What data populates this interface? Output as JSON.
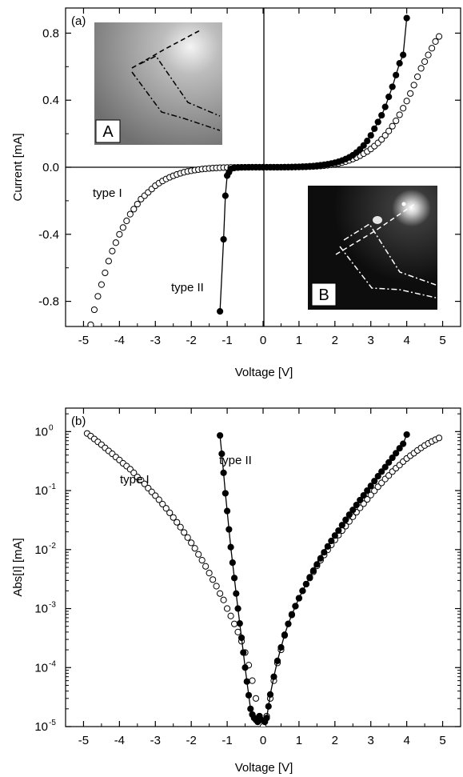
{
  "chart_data": [
    {
      "type": "scatter",
      "panel_label": "(a)",
      "xlabel": "Voltage [V]",
      "ylabel": "Current [mA]",
      "xlim": [
        -5.5,
        5.5
      ],
      "ylim": [
        -0.95,
        0.95
      ],
      "xticks": [
        -5,
        -4,
        -3,
        -2,
        -1,
        0,
        1,
        2,
        3,
        4,
        5
      ],
      "yticks": [
        -0.8,
        -0.4,
        0.0,
        0.4,
        0.8
      ],
      "xtick_labels": [
        "-5",
        "-4",
        "-3",
        "-2",
        "-1",
        "0",
        "1",
        "2",
        "3",
        "4",
        "5"
      ],
      "ytick_labels": [
        "-0.8",
        "-0.4",
        "0.0",
        "0.4",
        "0.8"
      ],
      "annotations": [
        {
          "text": "type I",
          "x": -4.4,
          "y": -0.16
        },
        {
          "text": "type II",
          "x": -2.7,
          "y": -0.73
        }
      ],
      "insets": [
        {
          "label": "A",
          "style": "grey micrograph, bright glow at upper left"
        },
        {
          "label": "B",
          "style": "dark micrograph, bright spot at upper right"
        }
      ],
      "series": [
        {
          "marker": "open-circle",
          "x": [
            -4.8,
            -4.7,
            -4.6,
            -4.5,
            -4.4,
            -4.3,
            -4.2,
            -4.1,
            -4.0,
            -3.9,
            -3.8,
            -3.7,
            -3.6,
            -3.5,
            -3.4,
            -3.3,
            -3.2,
            -3.1,
            -3.0,
            -2.9,
            -2.8,
            -2.7,
            -2.6,
            -2.5,
            -2.4,
            -2.3,
            -2.2,
            -2.1,
            -2.0,
            -1.9,
            -1.8,
            -1.7,
            -1.6,
            -1.5,
            -1.4,
            -1.3,
            -1.2,
            -1.1,
            -1.0,
            -0.9,
            -0.8,
            -0.7,
            -0.6,
            -0.5,
            -0.4,
            -0.3,
            -0.2,
            -0.1,
            0.0,
            0.1,
            0.2,
            0.3,
            0.4,
            0.5,
            0.6,
            0.7,
            0.8,
            0.9,
            1.0,
            1.1,
            1.2,
            1.3,
            1.4,
            1.5,
            1.6,
            1.7,
            1.8,
            1.9,
            2.0,
            2.1,
            2.2,
            2.3,
            2.4,
            2.5,
            2.6,
            2.7,
            2.8,
            2.9,
            3.0,
            3.1,
            3.2,
            3.3,
            3.4,
            3.5,
            3.6,
            3.7,
            3.8,
            3.9,
            4.0,
            4.1,
            4.2,
            4.3,
            4.4,
            4.5,
            4.6,
            4.7,
            4.8,
            4.9
          ],
          "y": [
            -0.94,
            -0.85,
            -0.77,
            -0.7,
            -0.63,
            -0.56,
            -0.5,
            -0.45,
            -0.4,
            -0.36,
            -0.32,
            -0.28,
            -0.25,
            -0.22,
            -0.19,
            -0.17,
            -0.15,
            -0.13,
            -0.11,
            -0.095,
            -0.082,
            -0.07,
            -0.06,
            -0.051,
            -0.043,
            -0.036,
            -0.03,
            -0.025,
            -0.021,
            -0.017,
            -0.014,
            -0.011,
            -0.009,
            -0.007,
            -0.005,
            -0.004,
            -0.003,
            -0.002,
            -0.0015,
            -0.001,
            -0.0008,
            -0.0005,
            -0.0003,
            -0.0002,
            -0.0001,
            -5e-05,
            -2e-05,
            -1e-05,
            0.0,
            1e-05,
            2e-05,
            5e-05,
            0.0001,
            0.0002,
            0.0003,
            0.0005,
            0.0008,
            0.0011,
            0.0015,
            0.002,
            0.0027,
            0.0035,
            0.0045,
            0.006,
            0.0075,
            0.0095,
            0.012,
            0.015,
            0.019,
            0.023,
            0.028,
            0.034,
            0.041,
            0.049,
            0.058,
            0.069,
            0.081,
            0.094,
            0.109,
            0.126,
            0.145,
            0.166,
            0.19,
            0.216,
            0.245,
            0.277,
            0.313,
            0.352,
            0.395,
            0.44,
            0.49,
            0.54,
            0.59,
            0.63,
            0.67,
            0.71,
            0.75,
            0.78
          ]
        },
        {
          "marker": "filled-circle",
          "line": true,
          "x": [
            -1.2,
            -1.1,
            -1.05,
            -1.0,
            -0.95,
            -0.9,
            -0.8,
            -0.7,
            -0.6,
            -0.5,
            -0.4,
            -0.3,
            -0.2,
            -0.1,
            0.0,
            0.1,
            0.2,
            0.3,
            0.4,
            0.5,
            0.6,
            0.7,
            0.8,
            0.9,
            1.0,
            1.1,
            1.2,
            1.3,
            1.4,
            1.5,
            1.6,
            1.7,
            1.8,
            1.9,
            2.0,
            2.1,
            2.2,
            2.3,
            2.4,
            2.5,
            2.6,
            2.7,
            2.8,
            2.9,
            3.0,
            3.1,
            3.2,
            3.3,
            3.4,
            3.5,
            3.6,
            3.7,
            3.8,
            3.9,
            4.0
          ],
          "y": [
            -0.86,
            -0.43,
            -0.17,
            -0.05,
            -0.03,
            -0.01,
            -0.004,
            -0.002,
            -0.001,
            -0.0005,
            -0.0002,
            -0.0001,
            -5e-05,
            -2e-05,
            0.0,
            1e-05,
            3e-05,
            7e-05,
            0.00015,
            0.0003,
            0.0005,
            0.0008,
            0.0012,
            0.0018,
            0.0025,
            0.0035,
            0.0045,
            0.006,
            0.0075,
            0.0095,
            0.012,
            0.015,
            0.018,
            0.022,
            0.027,
            0.033,
            0.04,
            0.049,
            0.059,
            0.072,
            0.088,
            0.107,
            0.13,
            0.157,
            0.19,
            0.23,
            0.27,
            0.31,
            0.36,
            0.42,
            0.48,
            0.55,
            0.62,
            0.67,
            0.89
          ]
        }
      ]
    },
    {
      "type": "scatter",
      "panel_label": "(b)",
      "xlabel": "Voltage [V]",
      "ylabel": "Abs[I] [mA]",
      "yscale": "log",
      "xlim": [
        -5.5,
        5.5
      ],
      "ylim": [
        1e-05,
        2.5
      ],
      "xticks": [
        -5,
        -4,
        -3,
        -2,
        -1,
        0,
        1,
        2,
        3,
        4,
        5
      ],
      "yticks": [
        1e-05,
        0.0001,
        0.001,
        0.01,
        0.1,
        1
      ],
      "xtick_labels": [
        "-5",
        "-4",
        "-3",
        "-2",
        "-1",
        "0",
        "1",
        "2",
        "3",
        "4",
        "5"
      ],
      "ytick_labels": [
        {
          "base": "10",
          "exp": "-5"
        },
        {
          "base": "10",
          "exp": "-4"
        },
        {
          "base": "10",
          "exp": "-3"
        },
        {
          "base": "10",
          "exp": "-2"
        },
        {
          "base": "10",
          "exp": "-1"
        },
        {
          "base": "10",
          "exp": "0"
        }
      ],
      "annotations": [
        {
          "text": "type I",
          "x": -3.3,
          "y": 0.085
        },
        {
          "text": "type II",
          "x": -0.25,
          "y": 0.42
        }
      ],
      "series": [
        {
          "marker": "open-circle",
          "x": [
            -4.9,
            -4.8,
            -4.7,
            -4.6,
            -4.5,
            -4.4,
            -4.3,
            -4.2,
            -4.1,
            -4.0,
            -3.9,
            -3.8,
            -3.7,
            -3.6,
            -3.5,
            -3.4,
            -3.3,
            -3.2,
            -3.1,
            -3.0,
            -2.9,
            -2.8,
            -2.7,
            -2.6,
            -2.5,
            -2.4,
            -2.3,
            -2.2,
            -2.1,
            -2.0,
            -1.9,
            -1.8,
            -1.7,
            -1.6,
            -1.5,
            -1.4,
            -1.3,
            -1.2,
            -1.1,
            -1.0,
            -0.9,
            -0.8,
            -0.7,
            -0.6,
            -0.5,
            -0.4,
            -0.3,
            -0.2,
            -0.1,
            0.0,
            0.1,
            0.2,
            0.3,
            0.4,
            0.5,
            0.6,
            0.7,
            0.8,
            0.9,
            1.0,
            1.1,
            1.2,
            1.3,
            1.4,
            1.5,
            1.6,
            1.7,
            1.8,
            1.9,
            2.0,
            2.1,
            2.2,
            2.3,
            2.4,
            2.5,
            2.6,
            2.7,
            2.8,
            2.9,
            3.0,
            3.1,
            3.2,
            3.3,
            3.4,
            3.5,
            3.6,
            3.7,
            3.8,
            3.9,
            4.0,
            4.1,
            4.2,
            4.3,
            4.4,
            4.5,
            4.6,
            4.7,
            4.8,
            4.9
          ],
          "y": [
            0.93,
            0.84,
            0.75,
            0.67,
            0.6,
            0.53,
            0.47,
            0.42,
            0.37,
            0.33,
            0.29,
            0.26,
            0.23,
            0.2,
            0.17,
            0.15,
            0.13,
            0.11,
            0.095,
            0.082,
            0.07,
            0.059,
            0.05,
            0.042,
            0.035,
            0.029,
            0.024,
            0.0195,
            0.016,
            0.013,
            0.0105,
            0.0083,
            0.0066,
            0.0052,
            0.004,
            0.0031,
            0.0024,
            0.0018,
            0.0014,
            0.001,
            0.00075,
            0.00055,
            0.0004,
            0.00028,
            0.00018,
            0.00011,
            6e-05,
            3e-05,
            1.5e-05,
            1e-05,
            1.5e-05,
            3e-05,
            6e-05,
            0.00012,
            0.0002,
            0.00035,
            0.00055,
            0.0008,
            0.0011,
            0.0015,
            0.002,
            0.0026,
            0.0033,
            0.0042,
            0.0053,
            0.0066,
            0.0081,
            0.0099,
            0.012,
            0.0146,
            0.0176,
            0.021,
            0.025,
            0.03,
            0.036,
            0.043,
            0.051,
            0.06,
            0.071,
            0.084,
            0.099,
            0.116,
            0.135,
            0.157,
            0.18,
            0.21,
            0.24,
            0.27,
            0.31,
            0.35,
            0.39,
            0.43,
            0.48,
            0.53,
            0.58,
            0.63,
            0.68,
            0.73,
            0.78
          ]
        },
        {
          "marker": "filled-circle",
          "line": true,
          "x": [
            -1.2,
            -1.15,
            -1.1,
            -1.05,
            -1.0,
            -0.95,
            -0.9,
            -0.85,
            -0.8,
            -0.75,
            -0.7,
            -0.65,
            -0.6,
            -0.55,
            -0.5,
            -0.45,
            -0.4,
            -0.35,
            -0.3,
            -0.25,
            -0.2,
            -0.15,
            -0.1,
            -0.05,
            0.05,
            0.1,
            0.15,
            0.2,
            0.3,
            0.4,
            0.5,
            0.6,
            0.7,
            0.8,
            0.9,
            1.0,
            1.1,
            1.2,
            1.3,
            1.4,
            1.5,
            1.6,
            1.7,
            1.8,
            1.9,
            2.0,
            2.1,
            2.2,
            2.3,
            2.4,
            2.5,
            2.6,
            2.7,
            2.8,
            2.9,
            3.0,
            3.1,
            3.2,
            3.3,
            3.4,
            3.5,
            3.6,
            3.7,
            3.8,
            3.9,
            4.0
          ],
          "y": [
            0.86,
            0.42,
            0.2,
            0.09,
            0.045,
            0.022,
            0.011,
            0.006,
            0.0033,
            0.0018,
            0.001,
            0.00056,
            0.00032,
            0.00018,
            0.0001,
            5.8e-05,
            3.4e-05,
            2e-05,
            1.6e-05,
            1.4e-05,
            1.3e-05,
            1.2e-05,
            1.5e-05,
            1.3e-05,
            1.2e-05,
            1.4e-05,
            2.2e-05,
            3.5e-05,
            7e-05,
            0.00013,
            0.00022,
            0.00036,
            0.00055,
            0.00078,
            0.0011,
            0.0015,
            0.002,
            0.0026,
            0.0034,
            0.0044,
            0.0056,
            0.0071,
            0.009,
            0.0113,
            0.014,
            0.0173,
            0.021,
            0.026,
            0.032,
            0.039,
            0.047,
            0.057,
            0.069,
            0.083,
            0.1,
            0.12,
            0.145,
            0.175,
            0.21,
            0.25,
            0.3,
            0.36,
            0.43,
            0.52,
            0.62,
            0.89
          ]
        }
      ]
    }
  ]
}
